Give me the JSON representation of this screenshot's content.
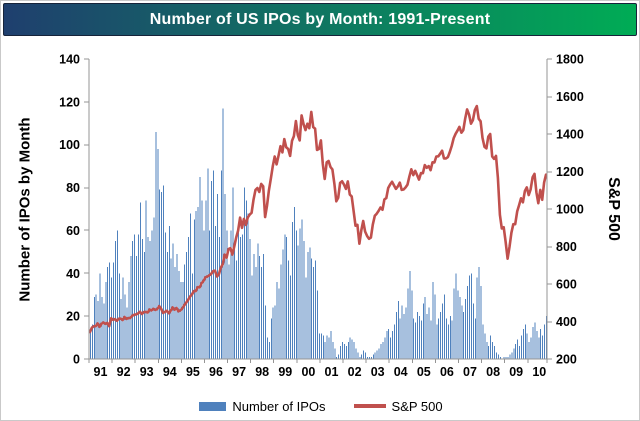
{
  "header": {
    "title": "Number of US IPOs by Month: 1991-Present",
    "gradient_left": "#1F3F6E",
    "gradient_right": "#00AC55",
    "text_color": "#FFFFFF"
  },
  "chart_data": {
    "type": "combo",
    "subtype": "bar+line",
    "axis_color": "#949494",
    "tick_text_color": "#000000",
    "x": {
      "start": "1991-01",
      "end": "2010-10",
      "frequency": "monthly",
      "tick_labels": [
        "91",
        "92",
        "93",
        "94",
        "95",
        "96",
        "97",
        "98",
        "99",
        "00",
        "01",
        "02",
        "03",
        "04",
        "05",
        "06",
        "07",
        "08",
        "09",
        "10"
      ]
    },
    "y_left": {
      "label": "Number of IPOs by Month",
      "min": 0,
      "max": 140,
      "ticks": [
        0,
        20,
        40,
        60,
        80,
        100,
        120,
        140
      ]
    },
    "y_right": {
      "label": "S&P 500",
      "min": 200,
      "max": 1800,
      "ticks": [
        200,
        400,
        600,
        800,
        1000,
        1200,
        1400,
        1600,
        1800
      ]
    },
    "series": [
      {
        "name": "Number of IPOs",
        "type": "bar",
        "axis": "left",
        "color": "#4F81BD",
        "values": [
          13,
          16,
          29,
          30,
          27,
          40,
          29,
          26,
          36,
          43,
          45,
          38,
          45,
          55,
          60,
          40,
          28,
          38,
          30,
          24,
          36,
          48,
          55,
          58,
          48,
          58,
          73,
          56,
          50,
          74,
          57,
          55,
          60,
          66,
          106,
          98,
          79,
          78,
          81,
          59,
          50,
          62,
          47,
          54,
          43,
          49,
          41,
          36,
          36,
          44,
          50,
          57,
          68,
          40,
          65,
          69,
          71,
          85,
          74,
          60,
          74,
          89,
          60,
          83,
          88,
          62,
          77,
          57,
          88,
          117,
          77,
          60,
          44,
          60,
          80,
          53,
          46,
          63,
          57,
          58,
          80,
          74,
          68,
          56,
          39,
          49,
          43,
          54,
          48,
          43,
          49,
          25,
          10,
          8,
          19,
          24,
          25,
          36,
          33,
          44,
          51,
          58,
          57,
          46,
          39,
          64,
          71,
          60,
          53,
          61,
          65,
          55,
          38,
          50,
          52,
          47,
          43,
          46,
          32,
          12,
          12,
          11,
          8,
          11,
          10,
          13,
          8,
          5,
          1,
          2,
          6,
          8,
          7,
          6,
          8,
          10,
          9,
          8,
          5,
          3,
          1,
          2,
          4,
          3,
          1,
          1,
          1,
          2,
          3,
          4,
          5,
          7,
          8,
          10,
          13,
          14,
          10,
          13,
          16,
          22,
          27,
          19,
          25,
          21,
          24,
          33,
          41,
          32,
          19,
          17,
          22,
          20,
          18,
          26,
          29,
          21,
          24,
          18,
          36,
          30,
          16,
          19,
          22,
          26,
          30,
          19,
          16,
          20,
          18,
          33,
          40,
          32,
          29,
          25,
          22,
          28,
          34,
          39,
          40,
          26,
          19,
          38,
          43,
          34,
          16,
          12,
          8,
          6,
          11,
          8,
          6,
          3,
          2,
          1,
          0,
          1,
          1,
          1,
          2,
          3,
          5,
          7,
          9,
          6,
          11,
          14,
          16,
          12,
          8,
          10,
          15,
          17,
          13,
          10,
          14,
          11,
          16,
          20
        ]
      },
      {
        "name": "S&P 500",
        "type": "line",
        "axis": "right",
        "color": "#C0504D",
        "values": [
          344,
          367,
          375,
          375,
          390,
          371,
          388,
          395,
          388,
          392,
          375,
          417,
          409,
          413,
          404,
          415,
          415,
          408,
          424,
          414,
          418,
          419,
          431,
          436,
          438,
          443,
          452,
          440,
          450,
          451,
          448,
          464,
          459,
          468,
          462,
          466,
          482,
          467,
          446,
          451,
          457,
          444,
          458,
          475,
          463,
          472,
          454,
          459,
          470,
          487,
          501,
          515,
          533,
          545,
          562,
          562,
          584,
          582,
          605,
          616,
          636,
          640,
          646,
          654,
          669,
          671,
          640,
          652,
          687,
          705,
          757,
          741,
          786,
          791,
          757,
          801,
          848,
          885,
          954,
          899,
          947,
          915,
          955,
          970,
          980,
          1049,
          1102,
          1112,
          1091,
          1134,
          1121,
          957,
          1017,
          1099,
          1164,
          1229,
          1280,
          1238,
          1286,
          1335,
          1302,
          1373,
          1329,
          1320,
          1283,
          1363,
          1389,
          1469,
          1394,
          1366,
          1499,
          1452,
          1421,
          1455,
          1431,
          1518,
          1437,
          1429,
          1315,
          1320,
          1366,
          1240,
          1160,
          1249,
          1256,
          1224,
          1211,
          1134,
          1041,
          1060,
          1139,
          1148,
          1130,
          1107,
          1147,
          1077,
          1067,
          990,
          911,
          916,
          815,
          886,
          936,
          880,
          856,
          841,
          848,
          917,
          964,
          975,
          990,
          1008,
          996,
          1051,
          1058,
          1112,
          1131,
          1145,
          1126,
          1107,
          1121,
          1141,
          1102,
          1104,
          1115,
          1130,
          1174,
          1212,
          1181,
          1204,
          1181,
          1157,
          1192,
          1191,
          1234,
          1220,
          1229,
          1207,
          1249,
          1248,
          1280,
          1281,
          1295,
          1311,
          1270,
          1270,
          1277,
          1304,
          1336,
          1378,
          1401,
          1418,
          1438,
          1407,
          1421,
          1482,
          1531,
          1503,
          1455,
          1474,
          1527,
          1549,
          1481,
          1468,
          1379,
          1331,
          1323,
          1386,
          1400,
          1280,
          1267,
          1283,
          1166,
          969,
          896,
          903,
          826,
          735,
          798,
          873,
          919,
          919,
          987,
          1021,
          1057,
          1036,
          1096,
          1115,
          1074,
          1104,
          1169,
          1187,
          1089,
          1031,
          1102,
          1049,
          1141,
          1183
        ]
      }
    ],
    "legend_position": "bottom",
    "grid": false
  }
}
